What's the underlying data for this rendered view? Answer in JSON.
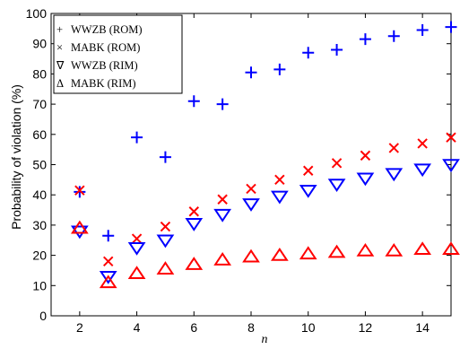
{
  "chart_data": {
    "type": "scatter",
    "title": "",
    "xlabel": "n",
    "ylabel": "Probability of violation (%)",
    "xlim": [
      1,
      15
    ],
    "ylim": [
      0,
      100
    ],
    "xticks": [
      "2",
      "4",
      "6",
      "8",
      "10",
      "12",
      "14"
    ],
    "yticks": [
      "0",
      "10",
      "20",
      "30",
      "40",
      "50",
      "60",
      "70",
      "80",
      "90",
      "100"
    ],
    "grid": false,
    "legend_position": "top-left",
    "series": [
      {
        "name": "WWZB (ROM)",
        "marker": "plus",
        "color": "#0000ff",
        "x": [
          2,
          3,
          4,
          5,
          6,
          7,
          8,
          9,
          10,
          11,
          12,
          13,
          14,
          15
        ],
        "y": [
          41,
          26.5,
          59,
          52.5,
          71,
          70,
          80.5,
          81.5,
          87,
          88,
          91.5,
          92.5,
          94.5,
          95.5
        ]
      },
      {
        "name": "MABK (ROM)",
        "marker": "x",
        "color": "#ff0000",
        "x": [
          2,
          3,
          4,
          5,
          6,
          7,
          8,
          9,
          10,
          11,
          12,
          13,
          14,
          15
        ],
        "y": [
          41.5,
          18,
          25.5,
          29.5,
          34.5,
          38.5,
          42,
          45,
          48,
          50.5,
          53,
          55.5,
          57,
          59
        ]
      },
      {
        "name": "WWZB (RIM)",
        "marker": "triangle-down",
        "color": "#0000ff",
        "x": [
          2,
          3,
          4,
          5,
          6,
          7,
          8,
          9,
          10,
          11,
          12,
          13,
          14,
          15
        ],
        "y": [
          28,
          13,
          22.5,
          25,
          30.5,
          33.5,
          37,
          39.5,
          41.5,
          43.5,
          45.5,
          47,
          48.5,
          50
        ]
      },
      {
        "name": "MABK (RIM)",
        "marker": "triangle-up",
        "color": "#ff0000",
        "x": [
          2,
          3,
          4,
          5,
          6,
          7,
          8,
          9,
          10,
          11,
          12,
          13,
          14,
          15
        ],
        "y": [
          29,
          11,
          14,
          15.5,
          17,
          18.5,
          19.5,
          20,
          20.5,
          21,
          21.5,
          21.5,
          22,
          22
        ]
      }
    ]
  },
  "legend": {
    "entries": [
      {
        "symbol": "+",
        "label": "WWZB (ROM)"
      },
      {
        "symbol": "×",
        "label": "MABK (ROM)"
      },
      {
        "symbol": "∇",
        "label": "WWZB (RIM)"
      },
      {
        "symbol": "Δ",
        "label": "MABK (RIM)"
      }
    ]
  }
}
